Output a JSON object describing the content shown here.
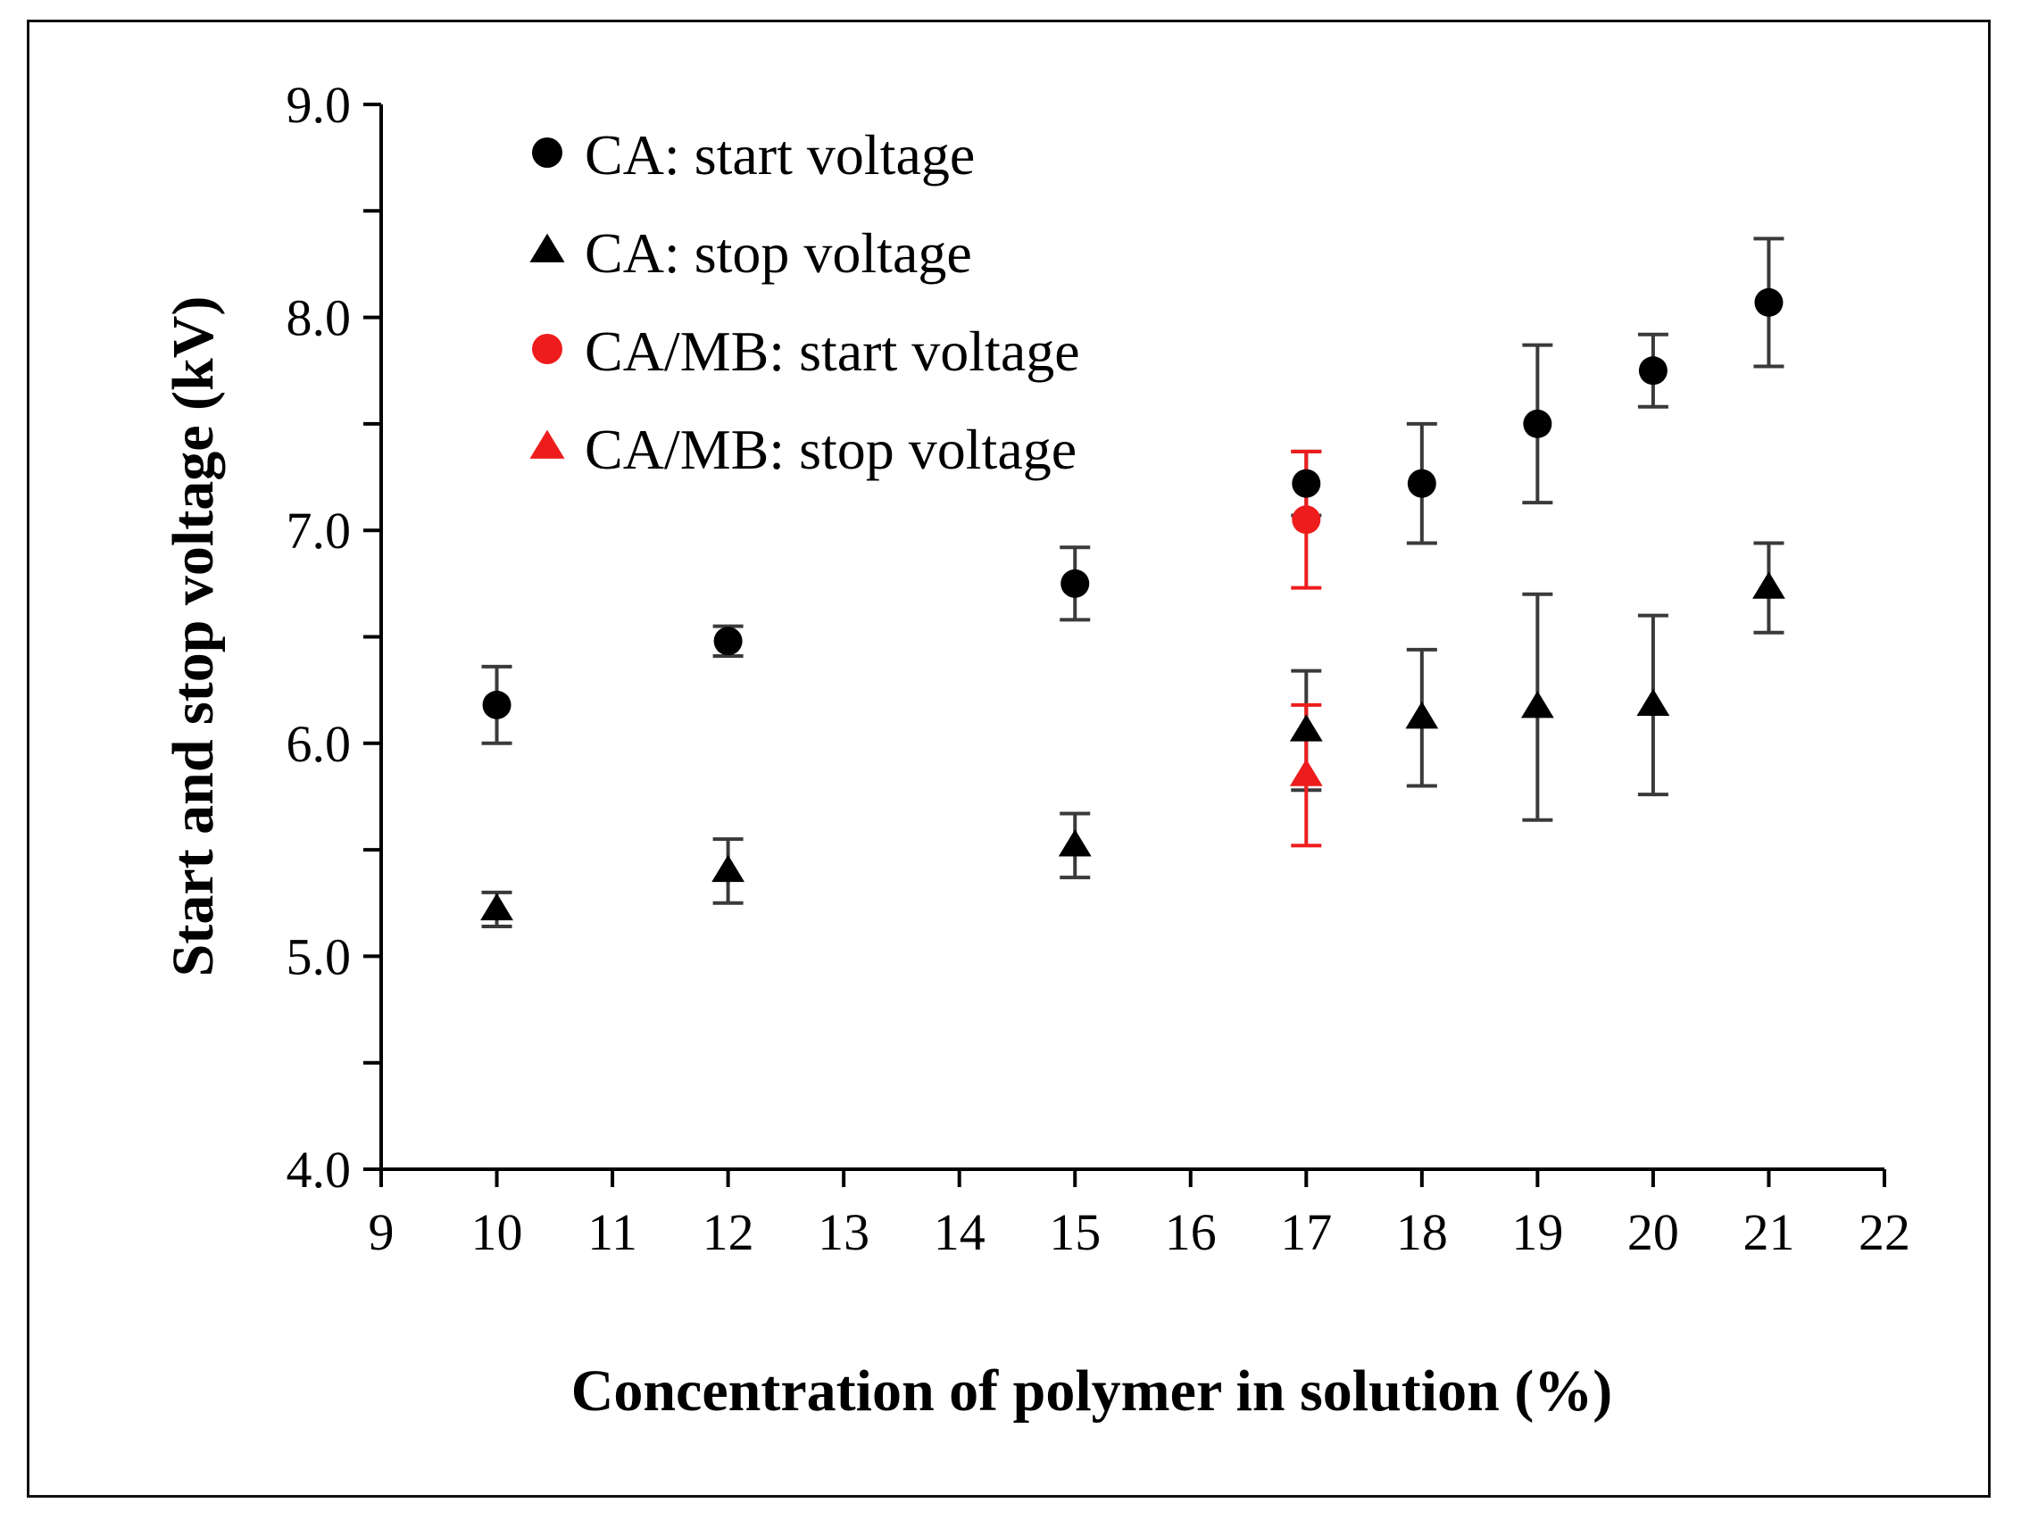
{
  "chart_data": {
    "type": "scatter",
    "title": "",
    "xlabel": "Concentration of polymer in solution (%)",
    "ylabel": "Start and stop voltage (kV)",
    "xlim": [
      9,
      22
    ],
    "ylim": [
      4.0,
      9.0
    ],
    "x_ticks": [
      9,
      10,
      11,
      12,
      13,
      14,
      15,
      16,
      17,
      18,
      19,
      20,
      21,
      22
    ],
    "x_tick_labels": [
      "9",
      "10",
      "11",
      "12",
      "13",
      "14",
      "15",
      "16",
      "17",
      "18",
      "19",
      "20",
      "21",
      "22"
    ],
    "y_major_ticks": [
      4.0,
      5.0,
      6.0,
      7.0,
      8.0,
      9.0
    ],
    "y_tick_labels": [
      "4.0",
      "5.0",
      "6.0",
      "7.0",
      "8.0",
      "9.0"
    ],
    "y_minor_step": 0.5,
    "grid": false,
    "legend_position": "top-left",
    "series": [
      {
        "name": "CA: start voltage",
        "marker": "circle",
        "color": "#000000",
        "error_color": "#3a3a3a",
        "x": [
          10,
          12,
          15,
          17,
          18,
          19,
          20,
          21
        ],
        "y": [
          6.18,
          6.48,
          6.75,
          7.22,
          7.22,
          7.5,
          7.75,
          8.07
        ],
        "error": [
          0.18,
          0.07,
          0.17,
          0.15,
          0.28,
          0.37,
          0.17,
          0.3
        ]
      },
      {
        "name": "CA: stop voltage",
        "marker": "triangle",
        "color": "#000000",
        "error_color": "#3a3a3a",
        "x": [
          10,
          12,
          15,
          17,
          18,
          19,
          20,
          21
        ],
        "y": [
          5.22,
          5.4,
          5.52,
          6.06,
          6.12,
          6.17,
          6.18,
          6.73
        ],
        "error": [
          0.08,
          0.15,
          0.15,
          0.28,
          0.32,
          0.53,
          0.42,
          0.21
        ]
      },
      {
        "name": "CA/MB: start voltage",
        "marker": "circle",
        "color": "#ee1c1c",
        "error_color": "#ee1c1c",
        "x": [
          17
        ],
        "y": [
          7.05
        ],
        "error": [
          0.32
        ]
      },
      {
        "name": "CA/MB: stop voltage",
        "marker": "triangle",
        "color": "#ee1c1c",
        "error_color": "#ee1c1c",
        "x": [
          17
        ],
        "y": [
          5.85
        ],
        "error": [
          0.33
        ]
      }
    ]
  }
}
